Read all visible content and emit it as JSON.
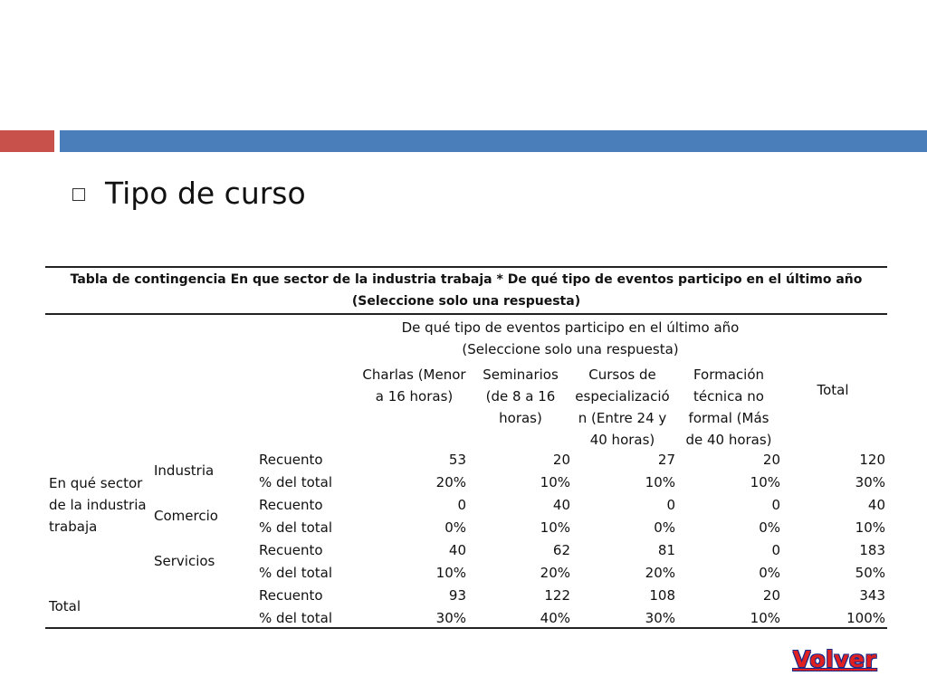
{
  "title": "Tipo de curso",
  "table": {
    "caption": "Tabla de contingencia En que sector de la industria trabaja * De qué tipo de eventos participo en el último año (Seleccione solo una respuesta)",
    "group_header": "De qué tipo de eventos participo en el último año (Seleccione solo una respuesta)",
    "columns": [
      "Charlas (Menor a 16 horas)",
      "Seminarios (de 8 a 16 horas)",
      "Cursos de especializació n (Entre 24 y 40 horas)",
      "Formación técnica no formal (Más de 40 horas)",
      "Total"
    ],
    "row_group_label": "En qué sector de la industria trabaja",
    "sectors": [
      {
        "name": "Industria",
        "recuento_label": "Recuento",
        "pct_label": "% del total",
        "recuento": [
          "53",
          "20",
          "27",
          "20",
          "120"
        ],
        "pct": [
          "20%",
          "10%",
          "10%",
          "10%",
          "30%"
        ]
      },
      {
        "name": "Comercio",
        "recuento_label": "Recuento",
        "pct_label": "% del total",
        "recuento": [
          "0",
          "40",
          "0",
          "0",
          "40"
        ],
        "pct": [
          "0%",
          "10%",
          "0%",
          "0%",
          "10%"
        ]
      },
      {
        "name": "Servicios",
        "recuento_label": "Recuento",
        "pct_label": "% del total",
        "recuento": [
          "40",
          "62",
          "81",
          "0",
          "183"
        ],
        "pct": [
          "10%",
          "20%",
          "20%",
          "0%",
          "50%"
        ]
      }
    ],
    "total": {
      "name": "Total",
      "recuento_label": "Recuento",
      "pct_label": "% del total",
      "recuento": [
        "93",
        "122",
        "108",
        "20",
        "343"
      ],
      "pct": [
        "30%",
        "40%",
        "30%",
        "10%",
        "100%"
      ]
    }
  },
  "volver_label": "Volver",
  "colors": {
    "accent_red": "#c8514c",
    "accent_blue": "#4a7ebb",
    "link_red": "#e02020"
  }
}
